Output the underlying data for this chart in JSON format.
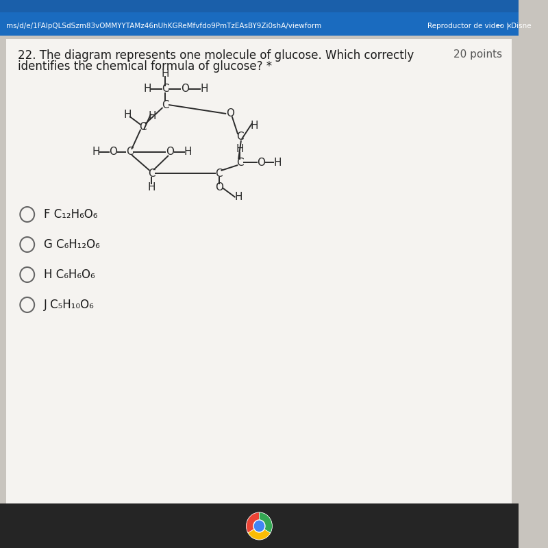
{
  "background_color": "#c8c4be",
  "browser_bar_color": "#1a6bbf",
  "browser_bar2_color": "#1558a0",
  "content_bg": "#f2f0ed",
  "question_text_line1": "22. The diagram represents one molecule of glucose. Which correctly",
  "question_text_line2": "identifies the chemical formula of glucose? *",
  "points_text": "20 points",
  "options": [
    {
      "letter": "F",
      "formula_parts": [
        [
          "F C",
          0
        ],
        [
          "₁₂",
          -3
        ],
        [
          "H",
          0
        ],
        [
          "₆",
          -3
        ],
        [
          "O",
          0
        ],
        [
          "₆",
          -3
        ]
      ]
    },
    {
      "letter": "G",
      "formula_parts": [
        [
          "G C",
          0
        ],
        [
          "₆",
          -3
        ],
        [
          "H",
          0
        ],
        [
          "₁₂",
          -3
        ],
        [
          "O",
          0
        ],
        [
          "₆",
          -3
        ]
      ]
    },
    {
      "letter": "H",
      "formula_parts": [
        [
          "H C",
          0
        ],
        [
          "₆",
          -3
        ],
        [
          "H",
          0
        ],
        [
          "₆",
          -3
        ],
        [
          "O",
          0
        ],
        [
          "₆",
          -3
        ]
      ]
    },
    {
      "letter": "J",
      "formula_parts": [
        [
          "J C",
          0
        ],
        [
          "₅",
          -3
        ],
        [
          "H",
          0
        ],
        [
          "₁₀",
          -3
        ],
        [
          "O",
          0
        ],
        [
          "₆",
          -3
        ]
      ]
    }
  ],
  "text_color": "#1a1a1a",
  "molecule_color": "#2a2a2a",
  "font_size_question": 12,
  "font_size_options": 12,
  "font_size_molecule": 11
}
